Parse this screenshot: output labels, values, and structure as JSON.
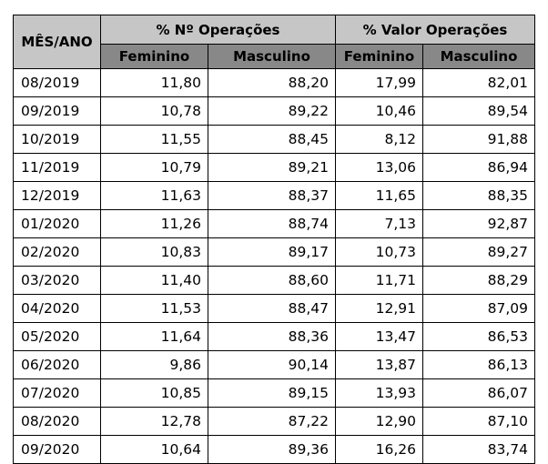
{
  "table": {
    "header": {
      "month_label": "MÊS/ANO",
      "group_count_label": "% Nº Operações",
      "group_value_label": "%  Valor Operações",
      "sub_labels": [
        "Feminino",
        "Masculino",
        "Feminino",
        "Masculino"
      ]
    },
    "rows": [
      {
        "month": "08/2019",
        "ops_fem": "11,80",
        "ops_masc": "88,20",
        "val_fem": "17,99",
        "val_masc": "82,01"
      },
      {
        "month": "09/2019",
        "ops_fem": "10,78",
        "ops_masc": "89,22",
        "val_fem": "10,46",
        "val_masc": "89,54"
      },
      {
        "month": "10/2019",
        "ops_fem": "11,55",
        "ops_masc": "88,45",
        "val_fem": "8,12",
        "val_masc": "91,88"
      },
      {
        "month": "11/2019",
        "ops_fem": "10,79",
        "ops_masc": "89,21",
        "val_fem": "13,06",
        "val_masc": "86,94"
      },
      {
        "month": "12/2019",
        "ops_fem": "11,63",
        "ops_masc": "88,37",
        "val_fem": "11,65",
        "val_masc": "88,35"
      },
      {
        "month": "01/2020",
        "ops_fem": "11,26",
        "ops_masc": "88,74",
        "val_fem": "7,13",
        "val_masc": "92,87"
      },
      {
        "month": "02/2020",
        "ops_fem": "10,83",
        "ops_masc": "89,17",
        "val_fem": "10,73",
        "val_masc": "89,27"
      },
      {
        "month": "03/2020",
        "ops_fem": "11,40",
        "ops_masc": "88,60",
        "val_fem": "11,71",
        "val_masc": "88,29"
      },
      {
        "month": "04/2020",
        "ops_fem": "11,53",
        "ops_masc": "88,47",
        "val_fem": "12,91",
        "val_masc": "87,09"
      },
      {
        "month": "05/2020",
        "ops_fem": "11,64",
        "ops_masc": "88,36",
        "val_fem": "13,47",
        "val_masc": "86,53"
      },
      {
        "month": "06/2020",
        "ops_fem": "9,86",
        "ops_masc": "90,14",
        "val_fem": "13,87",
        "val_masc": "86,13"
      },
      {
        "month": "07/2020",
        "ops_fem": "10,85",
        "ops_masc": "89,15",
        "val_fem": "13,93",
        "val_masc": "86,07"
      },
      {
        "month": "08/2020",
        "ops_fem": "12,78",
        "ops_masc": "87,22",
        "val_fem": "12,90",
        "val_masc": "87,10"
      },
      {
        "month": "09/2020",
        "ops_fem": "10,64",
        "ops_masc": "89,36",
        "val_fem": "16,26",
        "val_masc": "83,74"
      }
    ]
  }
}
